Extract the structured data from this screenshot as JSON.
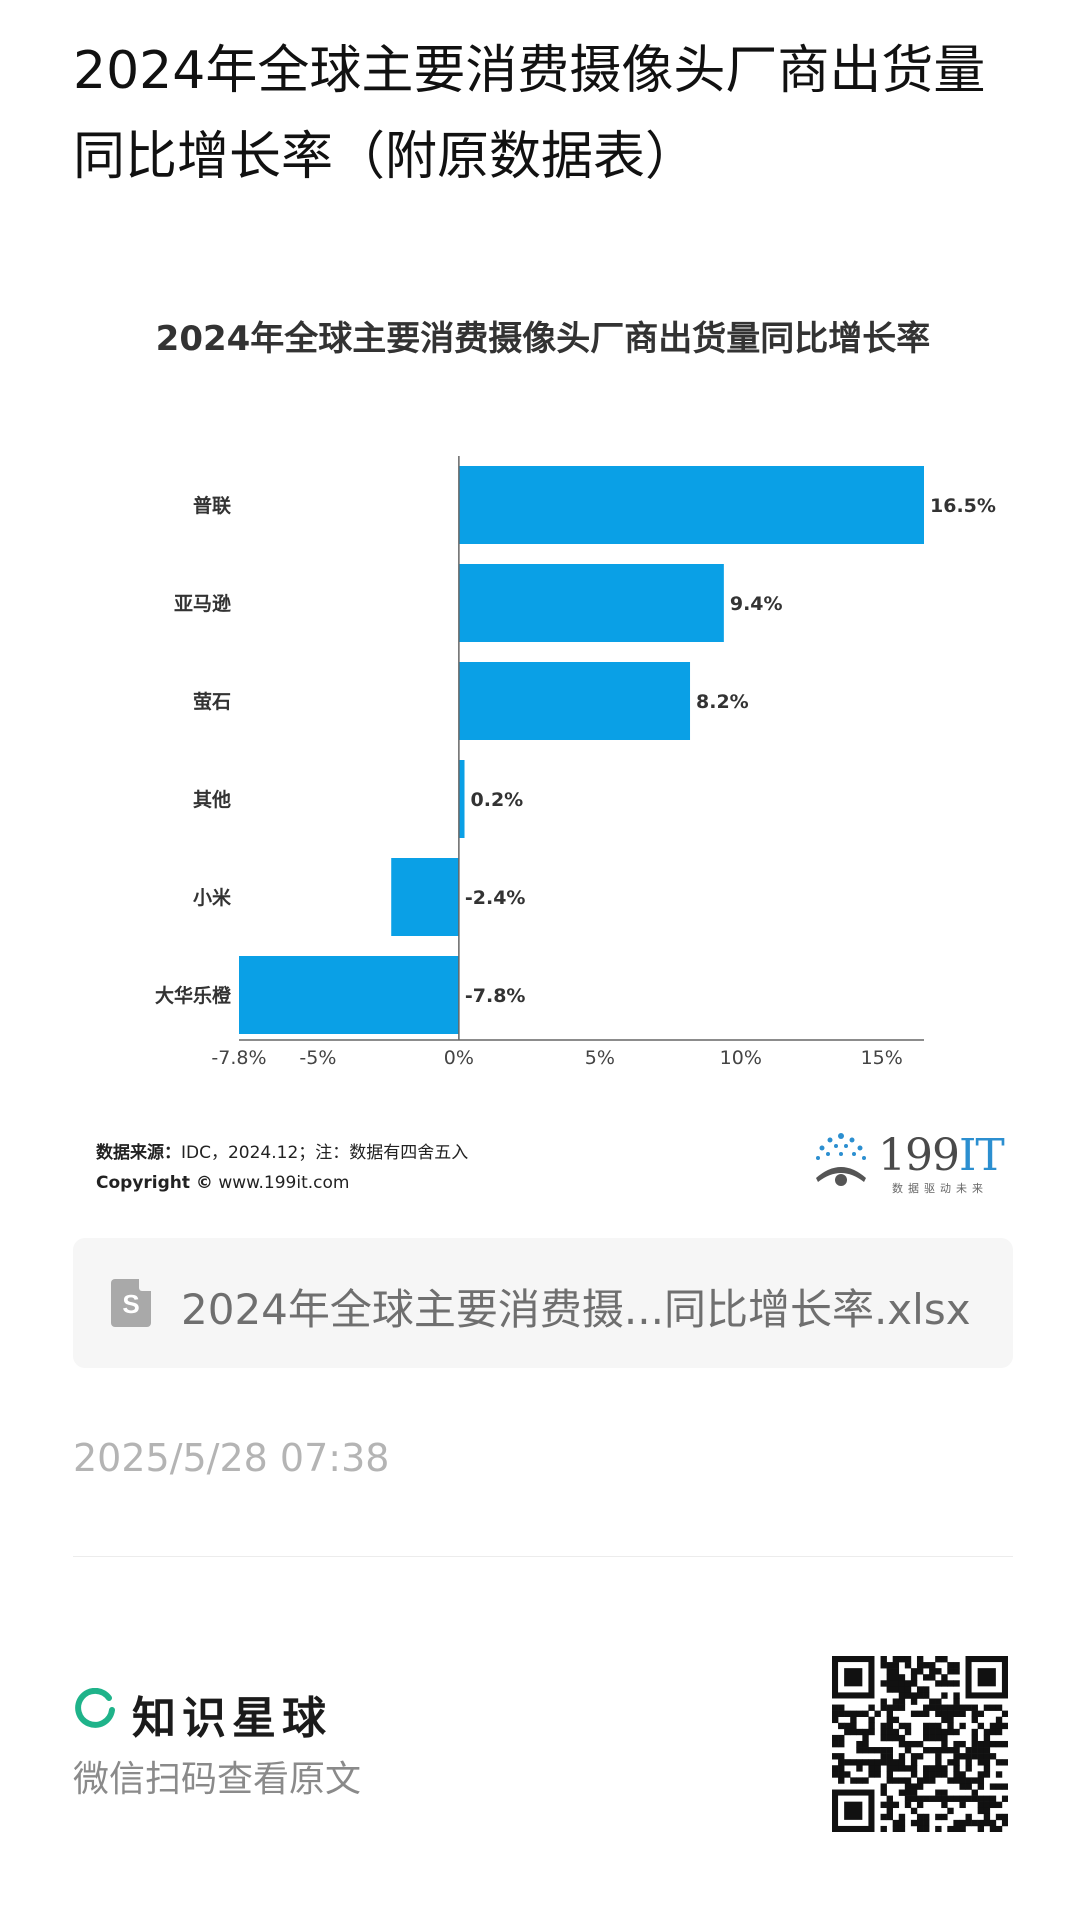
{
  "page": {
    "title": "2024年全球主要消费摄像头厂商出货量同比增长率（附原数据表）"
  },
  "chart_data": {
    "type": "bar",
    "orientation": "horizontal",
    "title": "2024年全球主要消费摄像头厂商出货量同比增长率",
    "categories": [
      "普联",
      "亚马逊",
      "萤石",
      "其他",
      "小米",
      "大华乐橙"
    ],
    "values": [
      16.5,
      9.4,
      8.2,
      0.2,
      -2.4,
      -7.8
    ],
    "value_labels": [
      "16.5%",
      "9.4%",
      "8.2%",
      "0.2%",
      "-2.4%",
      "-7.8%"
    ],
    "x_ticks": [
      -7.8,
      -5,
      0,
      5,
      10,
      15
    ],
    "x_tick_labels": [
      "-7.8%",
      "-5%",
      "0%",
      "5%",
      "10%",
      "15%"
    ],
    "xlim": [
      -7.8,
      16.5
    ],
    "bar_color": "#0aa0e6",
    "grid": false
  },
  "source": {
    "label": "数据来源：",
    "text": "IDC，2024.12；注：数据有四舍五入",
    "copyright_label": "Copyright ©",
    "copyright_url": "www.199it.com"
  },
  "brand": {
    "name": "199",
    "name_it": "IT",
    "tagline": "数据驱动未来"
  },
  "attachment": {
    "icon": "spreadsheet-file-icon",
    "icon_letter": "S",
    "filename": "2024年全球主要消费摄...同比增长率.xlsx"
  },
  "timestamp": "2025/5/28 07:38",
  "footer": {
    "planet_name": "知识星球",
    "scan_text": "微信扫码查看原文",
    "planet_color": "#1fb38a"
  }
}
